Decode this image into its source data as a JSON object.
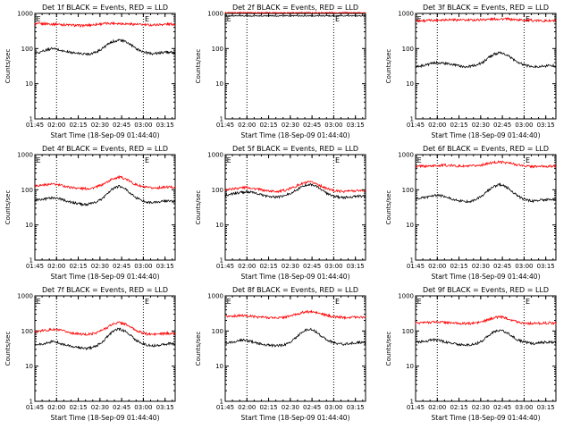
{
  "chart_data": [
    {
      "type": "line",
      "title": "Det 1f BLACK = Events, RED = LLD",
      "xlabel": "Start Time (18-Sep-09 01:44:40)",
      "ylabel": "Counts/sec",
      "yscale": "log",
      "ylim": [
        1,
        1000
      ],
      "xlim": [
        "01:45",
        "03:22"
      ],
      "xticks": [
        "01:45",
        "02:00",
        "02:15",
        "02:30",
        "02:45",
        "03:00",
        "03:15"
      ],
      "yticks": [
        "1",
        "10",
        "100",
        "1000"
      ],
      "annotations": [
        "E",
        "E"
      ],
      "vlines": [
        "02:00",
        "03:00"
      ],
      "series": [
        {
          "color": "#ff0000",
          "values": [
            500,
            505,
            510,
            500,
            495,
            480,
            470,
            460,
            450,
            455,
            470,
            490,
            510,
            520,
            530,
            520,
            510,
            500,
            490,
            480,
            470,
            470,
            480,
            490,
            495,
            490
          ]
        },
        {
          "color": "#000000",
          "values": [
            75,
            80,
            90,
            100,
            95,
            85,
            80,
            75,
            72,
            70,
            72,
            80,
            100,
            130,
            160,
            175,
            160,
            130,
            100,
            85,
            75,
            72,
            74,
            78,
            80,
            76
          ]
        }
      ]
    },
    {
      "type": "line",
      "title": "Det 2f BLACK = Events, RED = LLD",
      "xlabel": "Start Time (18-Sep-09 01:44:40)",
      "ylabel": "Counts/sec",
      "yscale": "log",
      "ylim": [
        1,
        1000
      ],
      "xlim": [
        "01:45",
        "03:22"
      ],
      "xticks": [
        "01:45",
        "02:00",
        "02:15",
        "02:30",
        "02:45",
        "03:00",
        "03:15"
      ],
      "yticks": [
        "1",
        "10",
        "100",
        "1000"
      ],
      "annotations": [
        "E",
        "E"
      ],
      "vlines": [
        "02:00",
        "03:00"
      ],
      "series": [
        {
          "color": "#ff0000",
          "values": [
            1050,
            1050,
            1050,
            1050,
            1050,
            1050,
            1050,
            1050,
            1050,
            1050,
            1050,
            1050,
            1050,
            1050,
            1050,
            1050,
            1050,
            1050,
            1050,
            1050,
            1050,
            1050,
            1050,
            1050,
            1050,
            1050
          ]
        },
        {
          "color": "#000000",
          "values": [
            850,
            850,
            850,
            850,
            850,
            850,
            850,
            850,
            850,
            850,
            850,
            850,
            850,
            850,
            850,
            850,
            850,
            850,
            850,
            850,
            850,
            850,
            850,
            850,
            850,
            850
          ]
        }
      ]
    },
    {
      "type": "line",
      "title": "Det 3f BLACK = Events, RED = LLD",
      "xlabel": "Start Time (18-Sep-09 01:44:40)",
      "ylabel": "Counts/sec",
      "yscale": "log",
      "ylim": [
        1,
        1000
      ],
      "xlim": [
        "01:45",
        "03:22"
      ],
      "xticks": [
        "01:45",
        "02:00",
        "02:15",
        "02:30",
        "02:45",
        "03:00",
        "03:15"
      ],
      "yticks": [
        "1",
        "10",
        "100",
        "1000"
      ],
      "annotations": [
        "E",
        "E"
      ],
      "vlines": [
        "02:00",
        "03:00"
      ],
      "series": [
        {
          "color": "#ff0000",
          "values": [
            620,
            620,
            630,
            640,
            650,
            660,
            670,
            660,
            650,
            640,
            650,
            660,
            670,
            680,
            690,
            700,
            690,
            680,
            660,
            650,
            640,
            630,
            620,
            620,
            615,
            615
          ]
        },
        {
          "color": "#000000",
          "values": [
            30,
            32,
            35,
            38,
            40,
            38,
            36,
            34,
            32,
            30,
            32,
            35,
            40,
            55,
            70,
            75,
            68,
            55,
            42,
            36,
            32,
            30,
            31,
            32,
            33,
            32
          ]
        }
      ]
    },
    {
      "type": "line",
      "title": "Det 4f BLACK = Events, RED = LLD",
      "xlabel": "Start Time (18-Sep-09 01:44:40)",
      "ylabel": "Counts/sec",
      "yscale": "log",
      "ylim": [
        1,
        1000
      ],
      "xlim": [
        "01:45",
        "03:22"
      ],
      "xticks": [
        "01:45",
        "02:00",
        "02:15",
        "02:30",
        "02:45",
        "03:00",
        "03:15"
      ],
      "yticks": [
        "1",
        "10",
        "100",
        "1000"
      ],
      "annotations": [
        "E",
        "E"
      ],
      "vlines": [
        "02:00",
        "03:00"
      ],
      "series": [
        {
          "color": "#ff0000",
          "values": [
            130,
            135,
            140,
            145,
            140,
            130,
            120,
            115,
            110,
            108,
            110,
            120,
            140,
            170,
            210,
            230,
            210,
            170,
            140,
            125,
            115,
            112,
            115,
            118,
            120,
            118
          ]
        },
        {
          "color": "#000000",
          "values": [
            50,
            52,
            55,
            60,
            58,
            52,
            46,
            42,
            40,
            38,
            40,
            45,
            55,
            80,
            110,
            125,
            110,
            80,
            60,
            50,
            45,
            43,
            45,
            47,
            48,
            46
          ]
        }
      ]
    },
    {
      "type": "line",
      "title": "Det 5f BLACK = Events, RED = LLD",
      "xlabel": "Start Time (18-Sep-09 01:44:40)",
      "ylabel": "Counts/sec",
      "yscale": "log",
      "ylim": [
        1,
        1000
      ],
      "xlim": [
        "01:45",
        "03:22"
      ],
      "xticks": [
        "01:45",
        "02:00",
        "02:15",
        "02:30",
        "02:45",
        "03:00",
        "03:15"
      ],
      "yticks": [
        "1",
        "10",
        "100",
        "1000"
      ],
      "annotations": [
        "E",
        "E"
      ],
      "vlines": [
        "02:00",
        "03:00"
      ],
      "series": [
        {
          "color": "#ff0000",
          "values": [
            100,
            105,
            110,
            115,
            118,
            110,
            102,
            96,
            92,
            90,
            92,
            100,
            115,
            135,
            155,
            165,
            155,
            130,
            110,
            98,
            92,
            90,
            92,
            94,
            95,
            94
          ]
        },
        {
          "color": "#000000",
          "values": [
            70,
            75,
            80,
            85,
            88,
            82,
            75,
            68,
            64,
            62,
            64,
            72,
            85,
            105,
            130,
            145,
            130,
            105,
            80,
            68,
            62,
            60,
            62,
            64,
            66,
            64
          ]
        }
      ]
    },
    {
      "type": "line",
      "title": "Det 6f BLACK = Events, RED = LLD",
      "xlabel": "Start Time (18-Sep-09 01:44:40)",
      "ylabel": "Counts/sec",
      "yscale": "log",
      "ylim": [
        1,
        1000
      ],
      "xlim": [
        "01:45",
        "03:22"
      ],
      "xticks": [
        "01:45",
        "02:00",
        "02:15",
        "02:30",
        "02:45",
        "03:00",
        "03:15"
      ],
      "yticks": [
        "1",
        "10",
        "100",
        "1000"
      ],
      "annotations": [
        "E",
        "E"
      ],
      "vlines": [
        "02:00",
        "03:00"
      ],
      "series": [
        {
          "color": "#ff0000",
          "values": [
            460,
            465,
            470,
            480,
            490,
            500,
            490,
            480,
            470,
            465,
            470,
            490,
            520,
            560,
            600,
            620,
            600,
            560,
            520,
            490,
            470,
            460,
            462,
            465,
            468,
            465
          ]
        },
        {
          "color": "#000000",
          "values": [
            55,
            58,
            62,
            68,
            70,
            65,
            58,
            52,
            48,
            46,
            48,
            55,
            70,
            95,
            125,
            140,
            125,
            95,
            70,
            56,
            50,
            48,
            50,
            52,
            54,
            52
          ]
        }
      ]
    },
    {
      "type": "line",
      "title": "Det 7f BLACK = Events, RED = LLD",
      "xlabel": "Start Time (18-Sep-09 01:44:40)",
      "ylabel": "Counts/sec",
      "yscale": "log",
      "ylim": [
        1,
        1000
      ],
      "xlim": [
        "01:45",
        "03:22"
      ],
      "xticks": [
        "01:45",
        "02:00",
        "02:15",
        "02:30",
        "02:45",
        "03:00",
        "03:15"
      ],
      "yticks": [
        "1",
        "10",
        "100",
        "1000"
      ],
      "annotations": [
        "E",
        "E"
      ],
      "vlines": [
        "02:00",
        "03:00"
      ],
      "series": [
        {
          "color": "#ff0000",
          "values": [
            95,
            100,
            105,
            110,
            108,
            100,
            92,
            86,
            82,
            80,
            82,
            90,
            105,
            130,
            160,
            175,
            160,
            130,
            105,
            90,
            82,
            80,
            82,
            84,
            86,
            84
          ]
        },
        {
          "color": "#000000",
          "values": [
            40,
            42,
            45,
            50,
            48,
            42,
            38,
            35,
            33,
            32,
            33,
            38,
            48,
            70,
            100,
            115,
            100,
            75,
            55,
            45,
            40,
            38,
            40,
            42,
            44,
            42
          ]
        }
      ]
    },
    {
      "type": "line",
      "title": "Det 8f BLACK = Events, RED = LLD",
      "xlabel": "Start Time (18-Sep-09 01:44:40)",
      "ylabel": "Counts/sec",
      "yscale": "log",
      "ylim": [
        1,
        1000
      ],
      "xlim": [
        "01:45",
        "03:22"
      ],
      "xticks": [
        "01:45",
        "02:00",
        "02:15",
        "02:30",
        "02:45",
        "03:00",
        "03:15"
      ],
      "yticks": [
        "1",
        "10",
        "100",
        "1000"
      ],
      "annotations": [
        "E",
        "E"
      ],
      "vlines": [
        "02:00",
        "03:00"
      ],
      "series": [
        {
          "color": "#ff0000",
          "values": [
            260,
            265,
            270,
            275,
            270,
            260,
            250,
            245,
            240,
            238,
            240,
            255,
            280,
            310,
            340,
            355,
            340,
            310,
            280,
            260,
            250,
            245,
            248,
            250,
            252,
            250
          ]
        },
        {
          "color": "#000000",
          "values": [
            45,
            47,
            50,
            55,
            53,
            48,
            44,
            41,
            39,
            38,
            39,
            43,
            52,
            75,
            100,
            115,
            100,
            75,
            58,
            48,
            44,
            42,
            44,
            46,
            47,
            46
          ]
        }
      ]
    },
    {
      "type": "line",
      "title": "Det 9f BLACK = Events, RED = LLD",
      "xlabel": "Start Time (18-Sep-09 01:44:40)",
      "ylabel": "Counts/sec",
      "yscale": "log",
      "ylim": [
        1,
        1000
      ],
      "xlim": [
        "01:45",
        "03:22"
      ],
      "xticks": [
        "01:45",
        "02:00",
        "02:15",
        "02:30",
        "02:45",
        "03:00",
        "03:15"
      ],
      "yticks": [
        "1",
        "10",
        "100",
        "1000"
      ],
      "annotations": [
        "E",
        "E"
      ],
      "vlines": [
        "02:00",
        "03:00"
      ],
      "series": [
        {
          "color": "#ff0000",
          "values": [
            170,
            172,
            175,
            180,
            182,
            178,
            172,
            168,
            165,
            163,
            165,
            172,
            185,
            210,
            240,
            255,
            240,
            210,
            185,
            172,
            166,
            164,
            166,
            168,
            170,
            168
          ]
        },
        {
          "color": "#000000",
          "values": [
            48,
            50,
            52,
            56,
            55,
            50,
            46,
            43,
            41,
            40,
            41,
            45,
            55,
            75,
            95,
            105,
            95,
            75,
            58,
            50,
            46,
            44,
            46,
            48,
            49,
            48
          ]
        }
      ]
    }
  ]
}
